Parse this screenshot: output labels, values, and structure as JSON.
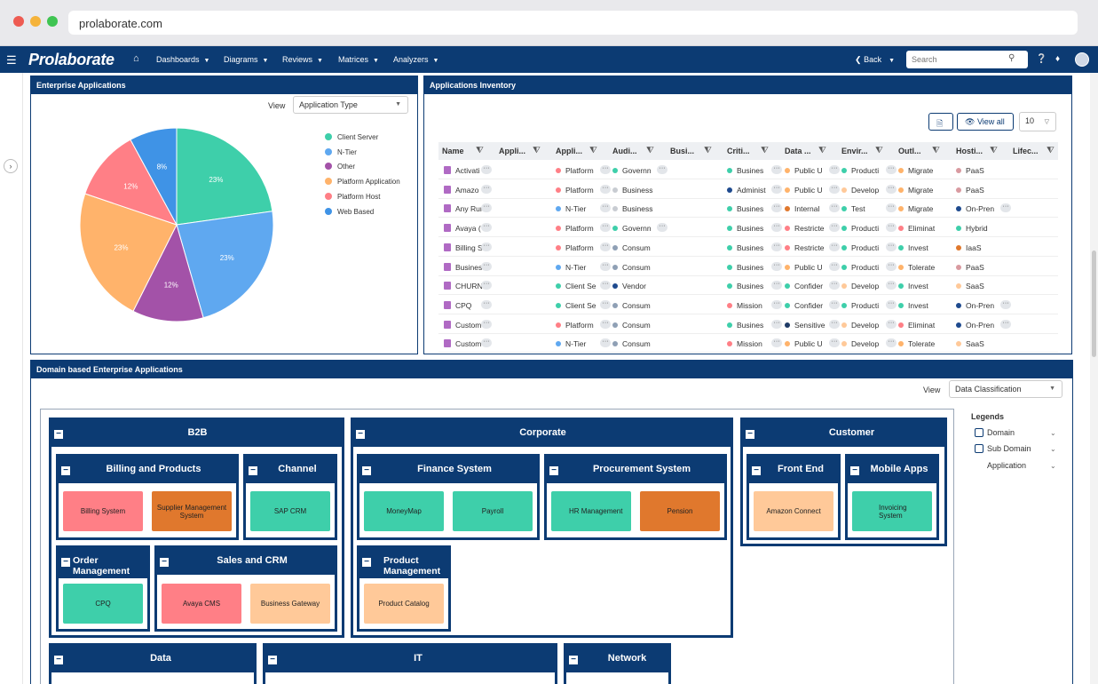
{
  "browser": {
    "url": "prolaborate.com"
  },
  "nav": {
    "logo": "Prolaborate",
    "menus": [
      "Dashboards",
      "Diagrams",
      "Reviews",
      "Matrices",
      "Analyzers"
    ],
    "back": "Back",
    "search_placeholder": "Search"
  },
  "enterprise_apps": {
    "title": "Enterprise Applications",
    "view_label": "View",
    "view_value": "Application Type"
  },
  "chart_data": {
    "type": "pie",
    "title": "",
    "slices": [
      {
        "label": "Client Server",
        "value": 23,
        "color": "#3ecfaa"
      },
      {
        "label": "N-Tier",
        "value": 23,
        "color": "#5fa8f0"
      },
      {
        "label": "Other",
        "value": 12,
        "color": "#a352a8"
      },
      {
        "label": "Platform Application",
        "value": 23,
        "color": "#ffb36b"
      },
      {
        "label": "Platform Host",
        "value": 12,
        "color": "#ff7f86"
      },
      {
        "label": "Web Based",
        "value": 8,
        "color": "#3f93e6"
      }
    ],
    "slice_labels": [
      "23%",
      "23%",
      "12%",
      "23%",
      "12%",
      "8%"
    ],
    "legend_position": "right"
  },
  "inventory": {
    "title": "Applications Inventory",
    "view_all": "View all",
    "page_size": "10",
    "columns": [
      "Name",
      "Appli...",
      "Appli...",
      "Audi...",
      "Busi...",
      "Criti...",
      "Data ...",
      "Envir...",
      "Outl...",
      "Hosti...",
      "Lifec..."
    ],
    "rows": [
      {
        "name": "Activati",
        "c2": "Platform",
        "c2c": "#ff7f86",
        "c3": "Governn",
        "c3c": "#3ecfaa",
        "c5": "Busines",
        "c5c": "#3ecfaa",
        "c6": "Public U",
        "c6c": "#ffb36b",
        "c7": "Producti",
        "c7c": "#3ecfaa",
        "c8": "Migrate",
        "c8c": "#ffb36b",
        "c9": "PaaS",
        "c9c": "#d99aa0"
      },
      {
        "name": "Amazo",
        "c2": "Platform",
        "c2c": "#ff7f86",
        "c3": "Business",
        "c3c": "#c8ccd2",
        "c5": "Administ",
        "c5c": "#1e4a8e",
        "c6": "Public U",
        "c6c": "#ffb36b",
        "c7": "Develop",
        "c7c": "#ffc999",
        "c8": "Migrate",
        "c8c": "#ffb36b",
        "c9": "PaaS",
        "c9c": "#d99aa0"
      },
      {
        "name": "Any Run",
        "c2": "N-Tier",
        "c2c": "#5fa8f0",
        "c3": "Business",
        "c3c": "#c8ccd2",
        "c5": "Busines",
        "c5c": "#3ecfaa",
        "c6": "Internal",
        "c6c": "#e0782d",
        "c7": "Test",
        "c7c": "#3ecfaa",
        "c8": "Migrate",
        "c8c": "#ffb36b",
        "c9": "On-Pren",
        "c9c": "#1e4a8e"
      },
      {
        "name": "Avaya (",
        "c2": "Platform",
        "c2c": "#ff7f86",
        "c3": "Governn",
        "c3c": "#3ecfaa",
        "c5": "Busines",
        "c5c": "#3ecfaa",
        "c6": "Restricte",
        "c6c": "#ff7f86",
        "c7": "Producti",
        "c7c": "#3ecfaa",
        "c8": "Eliminat",
        "c8c": "#ff7f86",
        "c9": "Hybrid",
        "c9c": "#3ecfaa"
      },
      {
        "name": "Billing S",
        "c2": "Platform",
        "c2c": "#ff7f86",
        "c3": "Consum",
        "c3c": "#8fa0b5",
        "c5": "Busines",
        "c5c": "#3ecfaa",
        "c6": "Restricte",
        "c6c": "#ff7f86",
        "c7": "Producti",
        "c7c": "#3ecfaa",
        "c8": "Invest",
        "c8c": "#3ecfaa",
        "c9": "IaaS",
        "c9c": "#e0782d"
      },
      {
        "name": "Busines",
        "c2": "N-Tier",
        "c2c": "#5fa8f0",
        "c3": "Consum",
        "c3c": "#8fa0b5",
        "c5": "Busines",
        "c5c": "#3ecfaa",
        "c6": "Public U",
        "c6c": "#ffb36b",
        "c7": "Producti",
        "c7c": "#3ecfaa",
        "c8": "Tolerate",
        "c8c": "#ffb36b",
        "c9": "PaaS",
        "c9c": "#d99aa0"
      },
      {
        "name": "CHURN",
        "c2": "Client Se",
        "c2c": "#3ecfaa",
        "c3": "Vendor",
        "c3c": "#1e4a8e",
        "c5": "Busines",
        "c5c": "#3ecfaa",
        "c6": "Confider",
        "c6c": "#3ecfaa",
        "c7": "Develop",
        "c7c": "#ffc999",
        "c8": "Invest",
        "c8c": "#3ecfaa",
        "c9": "SaaS",
        "c9c": "#ffc999"
      },
      {
        "name": "CPQ",
        "c2": "Client Se",
        "c2c": "#3ecfaa",
        "c3": "Consum",
        "c3c": "#8fa0b5",
        "c5": "Mission",
        "c5c": "#ff7f86",
        "c6": "Confider",
        "c6c": "#3ecfaa",
        "c7": "Producti",
        "c7c": "#3ecfaa",
        "c8": "Invest",
        "c8c": "#3ecfaa",
        "c9": "On-Pren",
        "c9c": "#1e4a8e"
      },
      {
        "name": "Custom",
        "c2": "Platform",
        "c2c": "#ff7f86",
        "c3": "Consum",
        "c3c": "#8fa0b5",
        "c5": "Busines",
        "c5c": "#3ecfaa",
        "c6": "Sensitive",
        "c6c": "#1e3a66",
        "c7": "Develop",
        "c7c": "#ffc999",
        "c8": "Eliminat",
        "c8c": "#ff7f86",
        "c9": "On-Pren",
        "c9c": "#1e4a8e"
      },
      {
        "name": "Custom",
        "c2": "N-Tier",
        "c2c": "#5fa8f0",
        "c3": "Consum",
        "c3c": "#8fa0b5",
        "c5": "Mission",
        "c5c": "#ff7f86",
        "c6": "Public U",
        "c6c": "#ffb36b",
        "c7": "Develop",
        "c7c": "#ffc999",
        "c8": "Tolerate",
        "c8c": "#ffb36b",
        "c9": "SaaS",
        "c9c": "#ffc999"
      }
    ]
  },
  "domain": {
    "title": "Domain based Enterprise Applications",
    "view_label": "View",
    "view_value": "Data Classification",
    "b2b": "B2B",
    "corporate": "Corporate",
    "customer": "Customer",
    "billing_products": "Billing and Products",
    "channel": "Channel",
    "finance": "Finance System",
    "procurement": "Procurement System",
    "front_end": "Front End",
    "mobile_apps": "Mobile Apps",
    "order_mgmt": "Order Management",
    "sales_crm": "Sales and CRM",
    "product_mgmt": "Product Management",
    "data": "Data",
    "it": "IT",
    "network": "Network",
    "apps": {
      "billing_system": "Billing System",
      "supplier_mgmt": "Supplier Management System",
      "sap_crm": "SAP CRM",
      "moneymap": "MoneyMap",
      "payroll": "Payroll",
      "hr_mgmt": "HR Management",
      "pension": "Pension",
      "amazon_connect": "Amazon Connect",
      "invoicing": "Invoicing System",
      "cpq": "CPQ",
      "avaya_cms": "Avaya CMS",
      "business_gateway": "Business Gateway",
      "product_catalog": "Product Catalog"
    },
    "legends": {
      "title": "Legends",
      "domain": "Domain",
      "sub_domain": "Sub Domain",
      "application": "Application"
    }
  }
}
